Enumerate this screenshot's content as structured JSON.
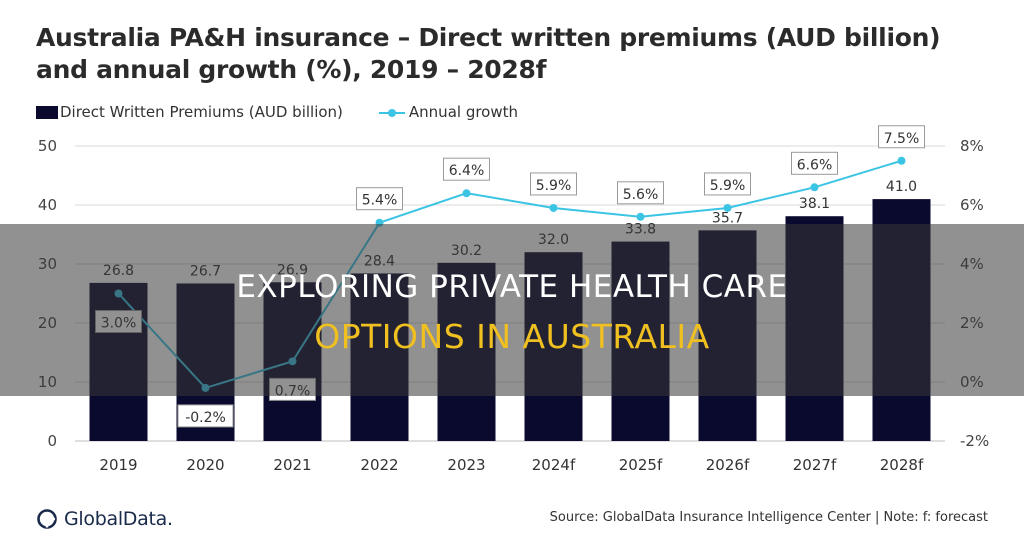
{
  "title_line1": "Australia PA&H insurance – Direct written premiums (AUD billion)",
  "title_line2": "and annual growth (%), 2019 – 2028f",
  "legend": {
    "bars": "Direct Written Premiums (AUD billion)",
    "line": "Annual growth"
  },
  "overlay": {
    "line1": "EXPLORING PRIVATE HEALTH CARE",
    "line2": "OPTIONS IN AUSTRALIA"
  },
  "footer": {
    "logo": "GlobalData.",
    "source": "Source: GlobalData Insurance Intelligence Center | Note: f: forecast"
  },
  "colors": {
    "bar": "#0a0a2e",
    "line": "#3cc4e4",
    "overlay_highlight": "#f0c020"
  },
  "chart_data": {
    "type": "bar",
    "categories": [
      "2019",
      "2020",
      "2021",
      "2022",
      "2023",
      "2024f",
      "2025f",
      "2026f",
      "2027f",
      "2028f"
    ],
    "series": [
      {
        "name": "Direct Written Premiums (AUD billion)",
        "type": "bar",
        "axis": "left",
        "values": [
          26.8,
          26.7,
          26.9,
          28.4,
          30.2,
          32.0,
          33.8,
          35.7,
          38.1,
          41.0
        ],
        "labels": [
          "26.8",
          "26.7",
          "26.9",
          "28.4",
          "30.2",
          "32.0",
          "33.8",
          "35.7",
          "38.1",
          "41.0"
        ]
      },
      {
        "name": "Annual growth",
        "type": "line",
        "axis": "right",
        "values": [
          3.0,
          -0.2,
          0.7,
          5.4,
          6.4,
          5.9,
          5.6,
          5.9,
          6.6,
          7.5
        ],
        "labels": [
          "3.0%",
          "-0.2%",
          "0.7%",
          "5.4%",
          "6.4%",
          "5.9%",
          "5.6%",
          "5.9%",
          "6.6%",
          "7.5%"
        ]
      }
    ],
    "y_left": {
      "min": 0,
      "max": 50,
      "ticks": [
        "0",
        "10",
        "20",
        "30",
        "40",
        "50"
      ],
      "tick_values": [
        0,
        10,
        20,
        30,
        40,
        50
      ]
    },
    "y_right": {
      "min": -2,
      "max": 8,
      "ticks": [
        "-2%",
        "0%",
        "2%",
        "4%",
        "6%",
        "8%"
      ],
      "tick_values": [
        -2,
        0,
        2,
        4,
        6,
        8
      ]
    },
    "grid": true,
    "legend_position": "top-left"
  }
}
